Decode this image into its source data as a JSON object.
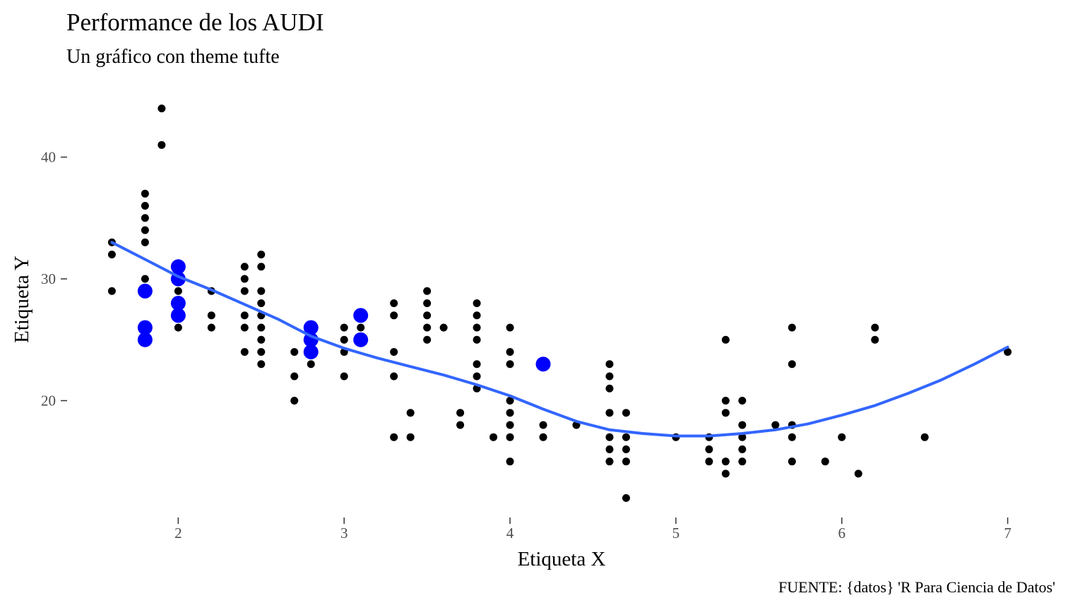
{
  "chart_data": {
    "type": "scatter",
    "title": "Performance de los AUDI",
    "subtitle": "Un gráfico con theme tufte",
    "caption": "FUENTE: {datos} 'R Para Ciencia de Datos'",
    "xlabel": "Etiqueta X",
    "ylabel": "Etiqueta Y",
    "xlim": [
      1.33,
      7.27
    ],
    "ylim": [
      10.4,
      45.6
    ],
    "x_ticks": [
      2,
      3,
      4,
      5,
      6,
      7
    ],
    "y_ticks": [
      20,
      30,
      40
    ],
    "grid": false,
    "legend": "none",
    "colors": {
      "points": "#000000",
      "highlight": "#0000ff",
      "smooth": "#3366ff"
    },
    "series": [
      {
        "role": "points",
        "points": [
          [
            1.6,
            33
          ],
          [
            1.6,
            32
          ],
          [
            1.6,
            29
          ],
          [
            1.8,
            37
          ],
          [
            1.8,
            36
          ],
          [
            1.8,
            35
          ],
          [
            1.8,
            34
          ],
          [
            1.8,
            33
          ],
          [
            1.8,
            30
          ],
          [
            1.8,
            29
          ],
          [
            1.8,
            26
          ],
          [
            1.8,
            25
          ],
          [
            1.9,
            44
          ],
          [
            1.9,
            41
          ],
          [
            2.0,
            31
          ],
          [
            2.0,
            30
          ],
          [
            2.0,
            29
          ],
          [
            2.0,
            28
          ],
          [
            2.0,
            27
          ],
          [
            2.0,
            26
          ],
          [
            2.2,
            29
          ],
          [
            2.2,
            27
          ],
          [
            2.2,
            26
          ],
          [
            2.4,
            31
          ],
          [
            2.4,
            30
          ],
          [
            2.4,
            29
          ],
          [
            2.4,
            27
          ],
          [
            2.4,
            26
          ],
          [
            2.4,
            24
          ],
          [
            2.5,
            32
          ],
          [
            2.5,
            31
          ],
          [
            2.5,
            29
          ],
          [
            2.5,
            28
          ],
          [
            2.5,
            27
          ],
          [
            2.5,
            26
          ],
          [
            2.5,
            25
          ],
          [
            2.5,
            24
          ],
          [
            2.5,
            23
          ],
          [
            2.7,
            24
          ],
          [
            2.7,
            22
          ],
          [
            2.7,
            20
          ],
          [
            2.8,
            26
          ],
          [
            2.8,
            25
          ],
          [
            2.8,
            24
          ],
          [
            2.8,
            23
          ],
          [
            3.0,
            26
          ],
          [
            3.0,
            25
          ],
          [
            3.0,
            24
          ],
          [
            3.0,
            22
          ],
          [
            3.1,
            27
          ],
          [
            3.1,
            26
          ],
          [
            3.1,
            25
          ],
          [
            3.3,
            28
          ],
          [
            3.3,
            27
          ],
          [
            3.3,
            24
          ],
          [
            3.3,
            22
          ],
          [
            3.3,
            17
          ],
          [
            3.4,
            19
          ],
          [
            3.4,
            17
          ],
          [
            3.5,
            29
          ],
          [
            3.5,
            28
          ],
          [
            3.5,
            27
          ],
          [
            3.5,
            26
          ],
          [
            3.5,
            25
          ],
          [
            3.6,
            26
          ],
          [
            3.7,
            19
          ],
          [
            3.7,
            18
          ],
          [
            3.8,
            28
          ],
          [
            3.8,
            27
          ],
          [
            3.8,
            26
          ],
          [
            3.8,
            25
          ],
          [
            3.8,
            23
          ],
          [
            3.8,
            22
          ],
          [
            3.8,
            21
          ],
          [
            3.9,
            17
          ],
          [
            4.0,
            26
          ],
          [
            4.0,
            24
          ],
          [
            4.0,
            23
          ],
          [
            4.0,
            20
          ],
          [
            4.0,
            19
          ],
          [
            4.0,
            18
          ],
          [
            4.0,
            17
          ],
          [
            4.0,
            15
          ],
          [
            4.2,
            18
          ],
          [
            4.2,
            17
          ],
          [
            4.4,
            18
          ],
          [
            4.6,
            23
          ],
          [
            4.6,
            22
          ],
          [
            4.6,
            21
          ],
          [
            4.6,
            19
          ],
          [
            4.6,
            17
          ],
          [
            4.6,
            16
          ],
          [
            4.6,
            15
          ],
          [
            4.7,
            19
          ],
          [
            4.7,
            17
          ],
          [
            4.7,
            16
          ],
          [
            4.7,
            15
          ],
          [
            4.7,
            12
          ],
          [
            5.0,
            17
          ],
          [
            5.2,
            17
          ],
          [
            5.2,
            16
          ],
          [
            5.2,
            15
          ],
          [
            5.3,
            25
          ],
          [
            5.3,
            20
          ],
          [
            5.3,
            19
          ],
          [
            5.3,
            15
          ],
          [
            5.3,
            14
          ],
          [
            5.4,
            20
          ],
          [
            5.4,
            18
          ],
          [
            5.4,
            17
          ],
          [
            5.4,
            16
          ],
          [
            5.4,
            15
          ],
          [
            5.6,
            18
          ],
          [
            5.7,
            26
          ],
          [
            5.7,
            23
          ],
          [
            5.7,
            18
          ],
          [
            5.7,
            17
          ],
          [
            5.7,
            15
          ],
          [
            5.9,
            15
          ],
          [
            6.0,
            17
          ],
          [
            6.1,
            14
          ],
          [
            6.2,
            26
          ],
          [
            6.2,
            25
          ],
          [
            6.5,
            17
          ],
          [
            7.0,
            24
          ]
        ]
      },
      {
        "role": "highlight",
        "points": [
          [
            1.8,
            29
          ],
          [
            1.8,
            26
          ],
          [
            1.8,
            25
          ],
          [
            2.0,
            31
          ],
          [
            2.0,
            30
          ],
          [
            2.0,
            28
          ],
          [
            2.0,
            27
          ],
          [
            2.8,
            26
          ],
          [
            2.8,
            25
          ],
          [
            2.8,
            24
          ],
          [
            3.1,
            27
          ],
          [
            3.1,
            25
          ],
          [
            4.2,
            23
          ]
        ]
      },
      {
        "role": "smooth",
        "type": "line",
        "points": [
          [
            1.6,
            33.0
          ],
          [
            1.8,
            31.6
          ],
          [
            2.0,
            30.2
          ],
          [
            2.2,
            29.1
          ],
          [
            2.4,
            27.9
          ],
          [
            2.6,
            26.7
          ],
          [
            2.8,
            25.3
          ],
          [
            3.0,
            24.3
          ],
          [
            3.2,
            23.5
          ],
          [
            3.4,
            22.8
          ],
          [
            3.6,
            22.1
          ],
          [
            3.8,
            21.3
          ],
          [
            4.0,
            20.4
          ],
          [
            4.2,
            19.3
          ],
          [
            4.4,
            18.3
          ],
          [
            4.6,
            17.6
          ],
          [
            4.8,
            17.3
          ],
          [
            5.0,
            17.1
          ],
          [
            5.2,
            17.1
          ],
          [
            5.4,
            17.3
          ],
          [
            5.6,
            17.6
          ],
          [
            5.8,
            18.1
          ],
          [
            6.0,
            18.8
          ],
          [
            6.2,
            19.6
          ],
          [
            6.4,
            20.6
          ],
          [
            6.6,
            21.7
          ],
          [
            6.8,
            23.0
          ],
          [
            7.0,
            24.4
          ]
        ]
      }
    ]
  }
}
